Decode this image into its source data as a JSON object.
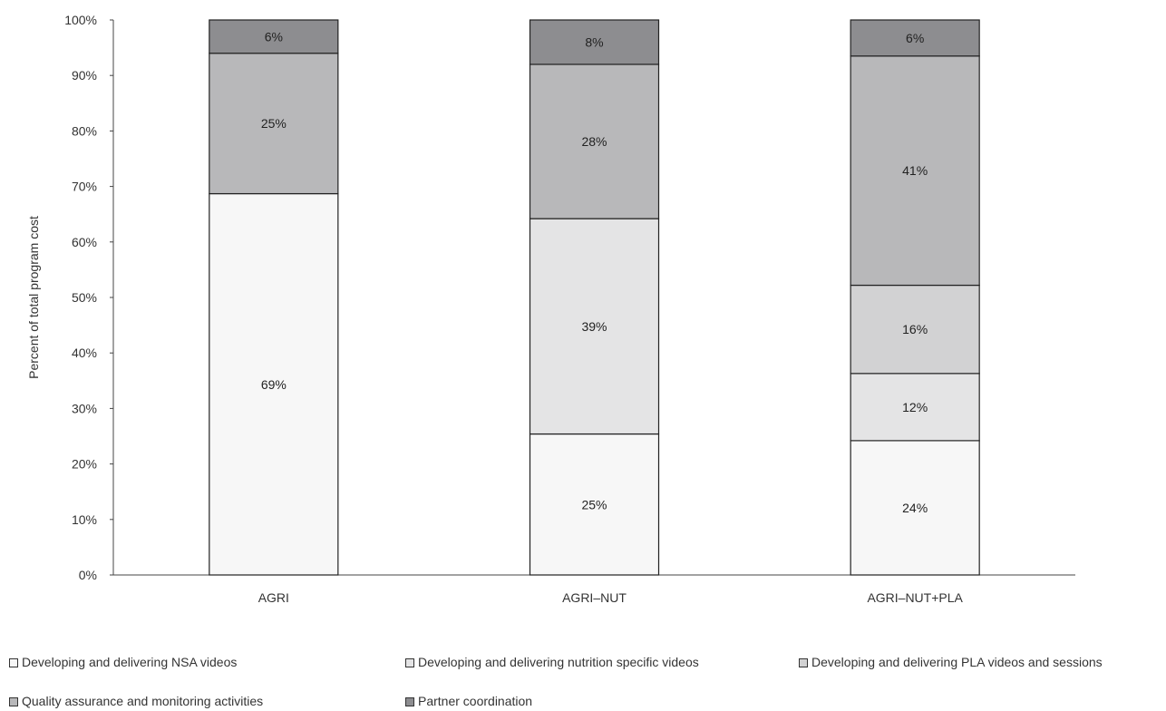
{
  "chart_data": {
    "type": "bar",
    "stacked": true,
    "categories": [
      "AGRI",
      "AGRI–NUT",
      "AGRI–NUT+PLA"
    ],
    "ylabel": "Percent of total program cost",
    "ylim": [
      0,
      100
    ],
    "yticks": [
      "0%",
      "10%",
      "20%",
      "30%",
      "40%",
      "50%",
      "60%",
      "70%",
      "80%",
      "90%",
      "100%"
    ],
    "grid": false,
    "legend_position": "bottom",
    "series": [
      {
        "name": "Developing and delivering NSA videos",
        "color": "#f7f7f7",
        "values": [
          68.7,
          25.4,
          24.2
        ],
        "labels": [
          "69%",
          "25%",
          "24%"
        ]
      },
      {
        "name": "Developing and delivering nutrition specific videos",
        "color": "#e4e4e5",
        "values": [
          0,
          38.8,
          12.1
        ],
        "labels": [
          "",
          "39%",
          "12%"
        ]
      },
      {
        "name": "Developing and delivering PLA videos and sessions",
        "color": "#d2d2d3",
        "values": [
          0,
          0,
          15.9
        ],
        "labels": [
          "",
          "",
          "16%"
        ]
      },
      {
        "name": "Quality assurance and monitoring activities",
        "color": "#b8b8ba",
        "values": [
          25.3,
          27.8,
          41.3
        ],
        "labels": [
          "25%",
          "28%",
          "41%"
        ]
      },
      {
        "name": "Partner coordination",
        "color": "#8d8d90",
        "values": [
          6.0,
          8.0,
          6.5
        ],
        "labels": [
          "6%",
          "8%",
          "6%"
        ]
      }
    ]
  }
}
